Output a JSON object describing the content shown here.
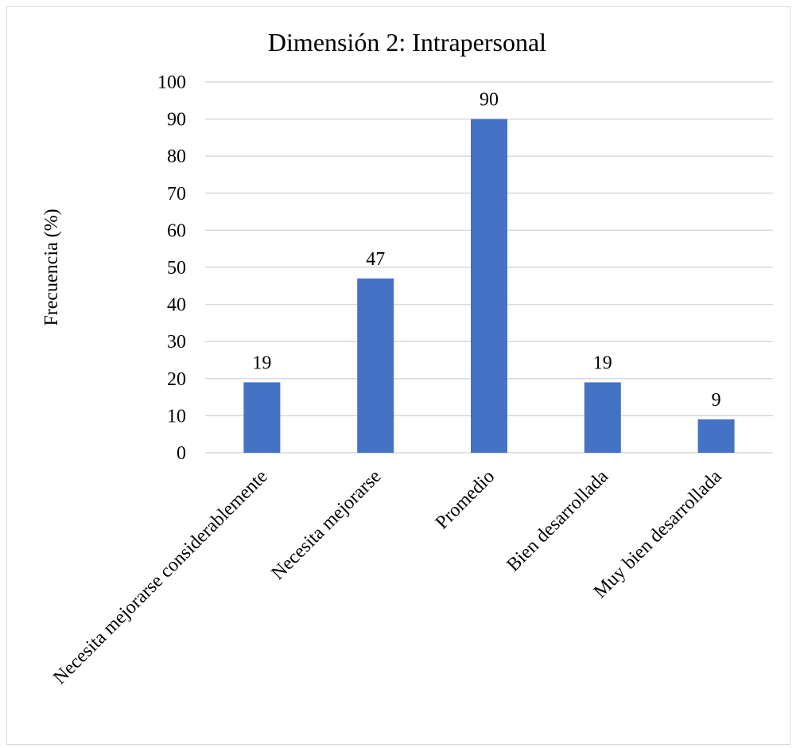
{
  "chart_data": {
    "type": "bar",
    "title": "Dimensión 2: Intrapersonal",
    "xlabel": "",
    "ylabel": "Frecuencia (%)",
    "categories": [
      "Necesita mejorarse considerablemente",
      "Necesita mejorarse",
      "Promedio",
      "Bien desarrollada",
      "Muy bien desarrollada"
    ],
    "values": [
      19,
      47,
      90,
      19,
      9
    ],
    "data_labels": [
      "19",
      "47",
      "90",
      "19",
      "9"
    ],
    "ylim": [
      0,
      100
    ],
    "yticks": [
      0,
      10,
      20,
      30,
      40,
      50,
      60,
      70,
      80,
      90,
      100
    ],
    "grid": true,
    "legend": "none",
    "bar_color": "#4472c4",
    "grid_color": "#d9d9d9"
  }
}
